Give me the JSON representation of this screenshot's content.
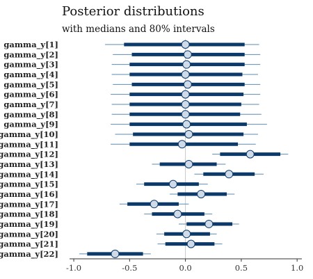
{
  "chart_data": {
    "type": "interval",
    "title": "Posterior distributions",
    "subtitle": "with medians and 80% intervals",
    "xlabel": "",
    "ylabel": "",
    "xlim": [
      -1.1,
      1.08
    ],
    "x_ticks": [
      -1.0,
      -0.5,
      0.0,
      0.5,
      1.0
    ],
    "x_tick_labels": [
      "-1.0",
      "-0.5",
      "0.0",
      "0.5",
      "1.0"
    ],
    "parameters": [
      {
        "label": "gamma_y[1]",
        "median": 0.0,
        "inner": [
          -0.55,
          0.53
        ],
        "outer": [
          -0.72,
          0.66
        ]
      },
      {
        "label": "gamma_y[2]",
        "median": 0.02,
        "inner": [
          -0.48,
          0.53
        ],
        "outer": [
          -0.65,
          0.67
        ]
      },
      {
        "label": "gamma_y[3]",
        "median": 0.01,
        "inner": [
          -0.5,
          0.53
        ],
        "outer": [
          -0.66,
          0.67
        ]
      },
      {
        "label": "gamma_y[4]",
        "median": 0.0,
        "inner": [
          -0.5,
          0.51
        ],
        "outer": [
          -0.66,
          0.65
        ]
      },
      {
        "label": "gamma_y[5]",
        "median": 0.02,
        "inner": [
          -0.48,
          0.53
        ],
        "outer": [
          -0.65,
          0.67
        ]
      },
      {
        "label": "gamma_y[6]",
        "median": 0.0,
        "inner": [
          -0.5,
          0.52
        ],
        "outer": [
          -0.67,
          0.67
        ]
      },
      {
        "label": "gamma_y[7]",
        "median": 0.0,
        "inner": [
          -0.5,
          0.5
        ],
        "outer": [
          -0.66,
          0.66
        ]
      },
      {
        "label": "gamma_y[8]",
        "median": 0.0,
        "inner": [
          -0.5,
          0.49
        ],
        "outer": [
          -0.66,
          0.68
        ]
      },
      {
        "label": "gamma_y[9]",
        "median": 0.01,
        "inner": [
          -0.5,
          0.55
        ],
        "outer": [
          -0.67,
          0.73
        ]
      },
      {
        "label": "gamma_y[10]",
        "median": 0.03,
        "inner": [
          -0.47,
          0.52
        ],
        "outer": [
          -0.63,
          0.65
        ]
      },
      {
        "label": "gamma_y[11]",
        "median": -0.03,
        "inner": [
          -0.5,
          0.47
        ],
        "outer": [
          -0.67,
          0.63
        ]
      },
      {
        "label": "gamma_y[12]",
        "median": 0.58,
        "inner": [
          0.31,
          0.85
        ],
        "outer": [
          0.24,
          0.92
        ]
      },
      {
        "label": "gamma_y[13]",
        "median": 0.03,
        "inner": [
          -0.23,
          0.28
        ],
        "outer": [
          -0.3,
          0.36
        ]
      },
      {
        "label": "gamma_y[14]",
        "median": 0.39,
        "inner": [
          0.16,
          0.62
        ],
        "outer": [
          0.08,
          0.7
        ]
      },
      {
        "label": "gamma_y[15]",
        "median": -0.11,
        "inner": [
          -0.37,
          0.12
        ],
        "outer": [
          -0.44,
          0.2
        ]
      },
      {
        "label": "gamma_y[16]",
        "median": 0.14,
        "inner": [
          -0.07,
          0.37
        ],
        "outer": [
          -0.14,
          0.44
        ]
      },
      {
        "label": "gamma_y[17]",
        "median": -0.28,
        "inner": [
          -0.52,
          -0.06
        ],
        "outer": [
          -0.59,
          0.03
        ]
      },
      {
        "label": "gamma_y[18]",
        "median": -0.07,
        "inner": [
          -0.3,
          0.17
        ],
        "outer": [
          -0.37,
          0.24
        ]
      },
      {
        "label": "gamma_y[19]",
        "median": 0.21,
        "inner": [
          0.01,
          0.42
        ],
        "outer": [
          -0.06,
          0.48
        ]
      },
      {
        "label": "gamma_y[20]",
        "median": 0.01,
        "inner": [
          -0.19,
          0.22
        ],
        "outer": [
          -0.26,
          0.28
        ]
      },
      {
        "label": "gamma_y[21]",
        "median": 0.05,
        "inner": [
          -0.18,
          0.26
        ],
        "outer": [
          -0.25,
          0.33
        ]
      },
      {
        "label": "gamma_y[22]",
        "median": -0.63,
        "inner": [
          -0.88,
          -0.38
        ],
        "outer": [
          -0.95,
          -0.31
        ]
      }
    ],
    "vertical_reference_line": 0.0,
    "grid": false,
    "legend": "none",
    "colors": {
      "interval_inner": "#0b3a6a",
      "interval_outer": "#5e8bb0",
      "point_fill": "#cfdbe8",
      "point_stroke": "#0b3a6a",
      "reference_line": "#c9c9c9",
      "axis": "#333333"
    }
  }
}
